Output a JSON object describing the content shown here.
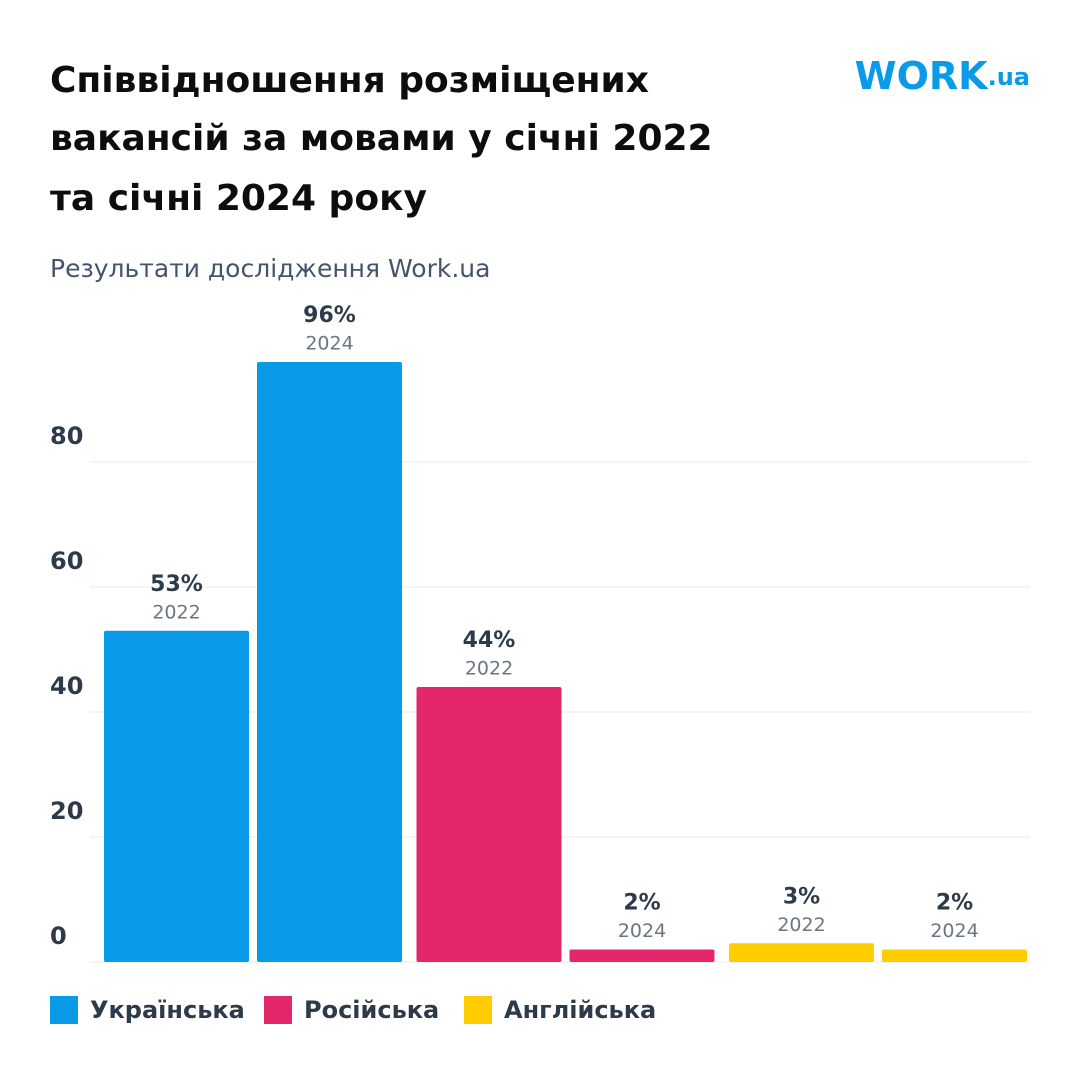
{
  "chart_data": {
    "type": "bar",
    "title": [
      "Співвідношення розміщених",
      "вакансій за мовами у січні 2022",
      "та січні 2024 року"
    ],
    "subtitle": "Результати дослідження Work.ua",
    "logo": {
      "main": "WORK",
      "suffix": ".ua"
    },
    "categories": [
      "2022",
      "2024"
    ],
    "series": [
      {
        "name": "Українська",
        "color": "#0a9be8",
        "values": [
          53,
          96
        ],
        "value_labels": [
          "53%",
          "96%"
        ]
      },
      {
        "name": "Російська",
        "color": "#e3276a",
        "values": [
          44,
          2
        ],
        "value_labels": [
          "44%",
          "2%"
        ]
      },
      {
        "name": "Англійська",
        "color": "#ffcc00",
        "values": [
          3,
          2
        ],
        "value_labels": [
          "3%",
          "2%"
        ]
      }
    ],
    "ylim": [
      0,
      100
    ],
    "yticks": [
      0,
      20,
      40,
      60,
      80
    ],
    "grid": true
  }
}
